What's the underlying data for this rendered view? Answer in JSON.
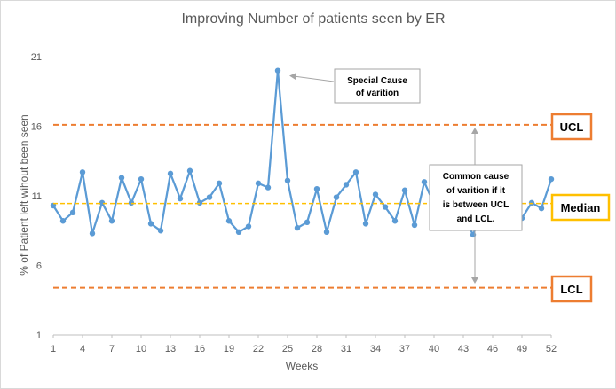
{
  "chart_data": {
    "type": "line",
    "title": "Improving Number of patients seen by ER",
    "xlabel": "Weeks",
    "ylabel": "% of Patient left wihout been seen",
    "xlim": [
      1,
      52
    ],
    "ylim": [
      1,
      21
    ],
    "x_ticks": [
      "1",
      "4",
      "7",
      "10",
      "13",
      "16",
      "19",
      "22",
      "25",
      "28",
      "31",
      "34",
      "37",
      "40",
      "43",
      "46",
      "49",
      "52"
    ],
    "y_ticks": [
      "1",
      "6",
      "11",
      "16",
      "21"
    ],
    "grid": false,
    "series": [
      {
        "values": [
          10.3,
          9.2,
          9.8,
          12.7,
          8.3,
          10.5,
          9.2,
          12.3,
          10.5,
          12.2,
          9,
          8.5,
          12.6,
          10.8,
          12.8,
          10.5,
          10.9,
          11.9,
          9.2,
          8.4,
          8.8,
          11.9,
          11.6,
          20,
          12.1,
          8.7,
          9.1,
          11.5,
          8.4,
          10.9,
          11.8,
          12.7,
          9,
          11.1,
          10.2,
          9.2,
          11.4,
          8.9,
          12,
          10.4,
          10.9,
          10.5,
          9.6,
          8.2,
          10.1,
          8.7,
          9.8,
          10.9,
          9.4,
          10.5,
          10.1,
          12.2
        ]
      }
    ],
    "reference_lines": {
      "ucl": 16.1,
      "median": 10.45,
      "lcl": 4.4
    },
    "labels": {
      "ucl": "UCL",
      "median": "Median",
      "lcl": "LCL"
    },
    "annotations": {
      "special_cause": [
        "Special Cause",
        "of varition"
      ],
      "common_cause": [
        "Common cause",
        "of varition if it",
        "is between UCL",
        "and LCL."
      ]
    },
    "colors": {
      "line": "#5b9bd5",
      "limits": "#ed7d31",
      "median": "#ffc000",
      "axis": "#bfbfbf",
      "text": "#595959",
      "callout_border": "#a6a6a6"
    }
  }
}
